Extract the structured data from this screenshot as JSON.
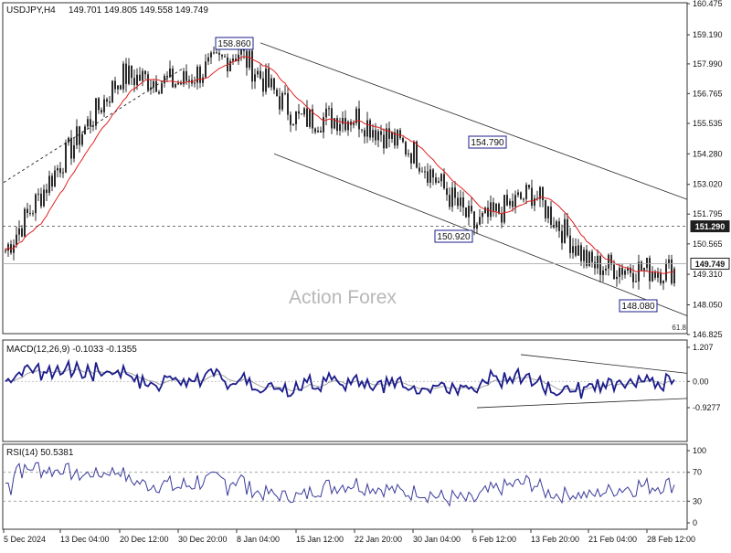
{
  "header": {
    "symbol": "USDJPY,H4",
    "quote": "149.701 149.805 149.558 149.749"
  },
  "watermark": "Action Forex",
  "colors": {
    "candle": "#2a2a2a",
    "ma": "#e02020",
    "channel": "#2a2a2a",
    "macd": "#1c1c8c",
    "signal": "#a0a0a0",
    "rsi": "#3a3a9a",
    "label_border": "#1c1c8c",
    "grid_dash": "#9a9a9a"
  },
  "chart_data": [
    {
      "name": "price",
      "type": "candlestick",
      "ylim": [
        146.825,
        160.475
      ],
      "y_ticks": [
        "160.475",
        "159.190",
        "157.990",
        "156.765",
        "155.535",
        "154.280",
        "153.020",
        "151.795",
        "150.565",
        "149.310",
        "148.050",
        "146.825"
      ],
      "x_ticks": [
        "5 Dec 2024",
        "13 Dec 04:00",
        "20 Dec 12:00",
        "30 Dec 20:00",
        "8 Jan 04:00",
        "15 Jan 12:00",
        "22 Jan 20:00",
        "30 Jan 04:00",
        "6 Feb 12:00",
        "13 Feb 20:00",
        "21 Feb 04:00",
        "28 Feb 12:00"
      ],
      "points": [
        {
          "x": "5 Dec 2024",
          "close": 150.3
        },
        {
          "x": "13 Dec 04:00",
          "close": 154.0
        },
        {
          "x": "20 Dec 12:00",
          "close": 157.5
        },
        {
          "x": "30 Dec 20:00",
          "close": 157.2
        },
        {
          "x": "8 Jan 04:00",
          "close": 158.5
        },
        {
          "x": "15 Jan 12:00",
          "close": 155.7
        },
        {
          "x": "22 Jan 20:00",
          "close": 155.8
        },
        {
          "x": "30 Jan 04:00",
          "close": 154.3
        },
        {
          "x": "6 Feb 12:00",
          "close": 151.3
        },
        {
          "x": "13 Feb 20:00",
          "close": 152.7
        },
        {
          "x": "21 Feb 04:00",
          "close": 149.7
        },
        {
          "x": "28 Feb 12:00",
          "close": 149.5
        }
      ],
      "level_labels": [
        {
          "x": "8 Jan 04:00",
          "value": "158.860"
        },
        {
          "x": "13 Feb 20:00",
          "value": "154.790"
        },
        {
          "x": "6 Feb 12:00",
          "value": "150.920"
        },
        {
          "x": "28 Feb 12:00",
          "value": "148.080"
        }
      ],
      "horizontal_levels": [
        {
          "value": 151.29,
          "label": "151.290",
          "style": "dashed"
        },
        {
          "value": 149.749,
          "label": "149.749",
          "style": "solid"
        }
      ],
      "fib_label": "61.8"
    },
    {
      "name": "macd",
      "type": "line",
      "title": "MACD(12,26,9) -0.1033 -0.1355",
      "ylim": [
        -0.9277,
        1.207
      ],
      "y_ticks": [
        "1.207",
        "0.00",
        "-0.9277"
      ]
    },
    {
      "name": "rsi",
      "type": "line",
      "title": "RSI(14) 50.5381",
      "ylim": [
        0,
        100
      ],
      "y_ticks": [
        "100",
        "70",
        "30",
        "0"
      ],
      "levels": [
        70,
        30
      ]
    }
  ]
}
